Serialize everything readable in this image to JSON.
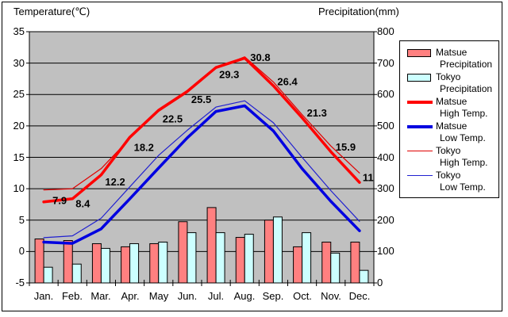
{
  "axis_titles": {
    "left": "Temperature(℃)",
    "right": "Precipitation(mm)"
  },
  "left_axis": {
    "tick_labels": [
      "35",
      "30",
      "25",
      "20",
      "15",
      "10",
      "5",
      "0",
      "-5"
    ]
  },
  "right_axis": {
    "tick_labels": [
      "800",
      "700",
      "600",
      "500",
      "400",
      "300",
      "200",
      "100",
      "0"
    ]
  },
  "x_axis": {
    "tick_labels": [
      "Jan.",
      "Feb.",
      "Mar.",
      "Apr.",
      "May",
      "Jun.",
      "Jul.",
      "Aug.",
      "Sep.",
      "Oct.",
      "Nov.",
      "Dec."
    ]
  },
  "colors": {
    "plot_bg": "#c0c0c0",
    "grid": "#000000",
    "frame": "#000000",
    "matsue_precip": "#ff8080",
    "tokyo_precip": "#ccffff",
    "matsue_high": "#ff0000",
    "matsue_low": "#0000e0",
    "tokyo_high": "#e00000",
    "tokyo_low": "#2020d0"
  },
  "legend": [
    {
      "name": "Matsue",
      "sub": "Precipitation",
      "swatch": "bar",
      "color": "#ff8080"
    },
    {
      "name": "Tokyo",
      "sub": "Precipitation",
      "swatch": "bar",
      "color": "#ccffff"
    },
    {
      "name": "Matsue",
      "sub": "High Temp.",
      "swatch": "line-thick",
      "color": "#ff0000"
    },
    {
      "name": "Matsue",
      "sub": "Low Temp.",
      "swatch": "line-thick",
      "color": "#0000e0"
    },
    {
      "name": "Tokyo",
      "sub": "High Temp.",
      "swatch": "line-thin",
      "color": "#e00000"
    },
    {
      "name": "Tokyo",
      "sub": "Low Temp.",
      "swatch": "line-thin",
      "color": "#2020d0"
    }
  ],
  "chart_data": {
    "type": "bar+line",
    "categories": [
      "Jan.",
      "Feb.",
      "Mar.",
      "Apr.",
      "May",
      "Jun.",
      "Jul.",
      "Aug.",
      "Sep.",
      "Oct.",
      "Nov.",
      "Dec."
    ],
    "y_left": {
      "label": "Temperature(℃)",
      "range": [
        -5,
        35
      ],
      "tick_step": 5
    },
    "y_right": {
      "label": "Precipitation(mm)",
      "range": [
        0,
        800
      ],
      "tick_step": 100
    },
    "gridlines": "horizontal",
    "legend_position": "right",
    "series": [
      {
        "name": "Matsue Precipitation",
        "type": "bar",
        "axis": "right",
        "color": "#ff8080",
        "values": [
          140,
          135,
          125,
          115,
          125,
          195,
          240,
          145,
          200,
          115,
          130,
          130
        ]
      },
      {
        "name": "Tokyo Precipitation",
        "type": "bar",
        "axis": "right",
        "color": "#ccffff",
        "values": [
          50,
          60,
          110,
          125,
          130,
          160,
          160,
          155,
          210,
          160,
          95,
          40
        ]
      },
      {
        "name": "Tokyo High Temp.",
        "type": "line",
        "axis": "left",
        "color": "#e00000",
        "width": 1.2,
        "values": [
          9.8,
          10.0,
          13.2,
          18.0,
          22.3,
          25.3,
          29.2,
          31.0,
          27.0,
          21.8,
          16.8,
          12.5
        ]
      },
      {
        "name": "Tokyo Low Temp.",
        "type": "line",
        "axis": "left",
        "color": "#2020d0",
        "width": 1.2,
        "values": [
          2.2,
          2.5,
          5.3,
          10.3,
          15.3,
          19.3,
          23.0,
          24.0,
          20.5,
          15.0,
          9.7,
          4.8
        ]
      },
      {
        "name": "Matsue High Temp.",
        "type": "line",
        "axis": "left",
        "color": "#ff0000",
        "width": 3.5,
        "values": [
          7.9,
          8.4,
          12.2,
          18.2,
          22.5,
          25.5,
          29.3,
          30.8,
          26.4,
          21.3,
          15.9,
          11
        ],
        "point_labels": [
          "7.9",
          "8.4",
          "12.2",
          "18.2",
          "22.5",
          "25.5",
          "29.3",
          "30.8",
          "26.4",
          "21.3",
          "15.9",
          "11"
        ]
      },
      {
        "name": "Matsue Low Temp.",
        "type": "line",
        "axis": "left",
        "color": "#0000e0",
        "width": 3.5,
        "values": [
          1.5,
          1.3,
          3.6,
          8.4,
          13.3,
          18.1,
          22.3,
          23.2,
          19.2,
          13.2,
          8.0,
          3.3
        ]
      }
    ]
  }
}
